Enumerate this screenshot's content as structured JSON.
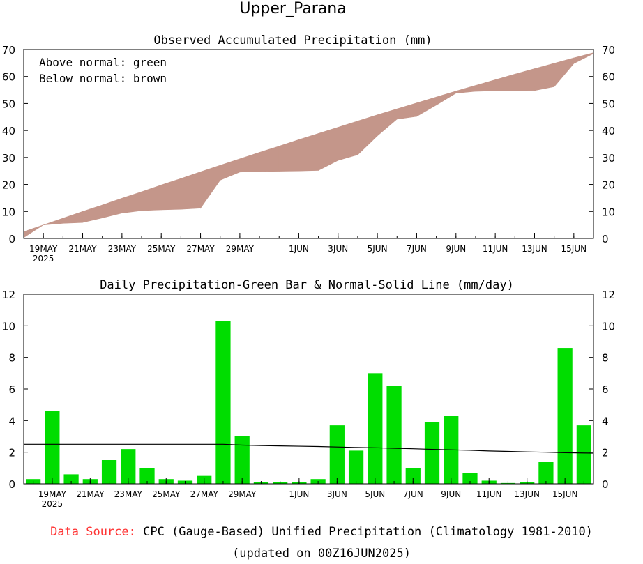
{
  "title": "Upper_Parana",
  "chart_data": [
    {
      "type": "area",
      "title": "Observed Accumulated Precipitation (mm)",
      "ylim": [
        0,
        70
      ],
      "yticks": [
        0,
        10,
        20,
        30,
        40,
        50,
        60,
        70
      ],
      "xlabels": [
        "19MAY",
        "21MAY",
        "23MAY",
        "25MAY",
        "27MAY",
        "29MAY",
        "1JUN",
        "3JUN",
        "5JUN",
        "7JUN",
        "9JUN",
        "11JUN",
        "13JUN",
        "15JUN"
      ],
      "year_label": "2025",
      "legend": [
        "Above normal: green",
        "Below normal: brown"
      ],
      "colors": {
        "above": "#00dd00",
        "below": "#c4968a"
      },
      "series": [
        {
          "name": "Observed",
          "values": [
            0.3,
            5.0,
            5.6,
            5.9,
            7.6,
            9.4,
            10.3,
            10.6,
            10.8,
            11.2,
            21.6,
            24.6,
            24.8,
            24.9,
            25.0,
            25.2,
            28.9,
            31.0,
            38.0,
            44.2,
            45.2,
            49.4,
            53.8,
            54.5,
            54.7,
            54.7,
            54.8,
            56.2,
            64.8,
            68.5
          ]
        },
        {
          "name": "Normal",
          "values": [
            2.5,
            5.0,
            7.5,
            10.0,
            12.4,
            14.9,
            17.3,
            19.8,
            22.2,
            24.7,
            27.1,
            29.5,
            31.9,
            34.2,
            36.6,
            38.9,
            41.2,
            43.5,
            45.8,
            48.0,
            50.2,
            52.4,
            54.6,
            56.7,
            58.8,
            60.9,
            62.9,
            64.9,
            66.9,
            68.8
          ]
        }
      ]
    },
    {
      "type": "bar",
      "title": "Daily Precipitation-Green Bar & Normal-Solid Line (mm/day)",
      "ylim": [
        0,
        12
      ],
      "yticks": [
        0,
        2,
        4,
        6,
        8,
        10,
        12
      ],
      "xlabels": [
        "19MAY",
        "21MAY",
        "23MAY",
        "25MAY",
        "27MAY",
        "29MAY",
        "1JUN",
        "3JUN",
        "5JUN",
        "7JUN",
        "9JUN",
        "11JUN",
        "13JUN",
        "15JUN"
      ],
      "year_label": "2025",
      "colors": {
        "bar": "#00dd00",
        "normal": "#000000"
      },
      "series": [
        {
          "name": "Daily",
          "values": [
            0.3,
            4.6,
            0.6,
            0.3,
            1.5,
            2.2,
            1.0,
            0.3,
            0.2,
            0.5,
            10.3,
            3.0,
            0.1,
            0.1,
            0.1,
            0.3,
            3.7,
            2.1,
            7.0,
            6.2,
            1.0,
            3.9,
            4.3,
            0.7,
            0.2,
            0.05,
            0.1,
            1.4,
            8.6,
            3.7
          ]
        },
        {
          "name": "Normal",
          "values": [
            2.5,
            2.5,
            2.5,
            2.5,
            2.5,
            2.5,
            2.5,
            2.5,
            2.5,
            2.5,
            2.5,
            2.45,
            2.42,
            2.4,
            2.38,
            2.36,
            2.33,
            2.3,
            2.28,
            2.25,
            2.22,
            2.18,
            2.15,
            2.12,
            2.08,
            2.05,
            2.02,
            2.0,
            1.97,
            1.94
          ]
        }
      ]
    }
  ],
  "footer": {
    "source_label": "Data Source:",
    "source_text": " CPC (Gauge-Based) Unified Precipitation (Climatology 1981-2010)",
    "updated": "(updated on 00Z16JUN2025)"
  }
}
